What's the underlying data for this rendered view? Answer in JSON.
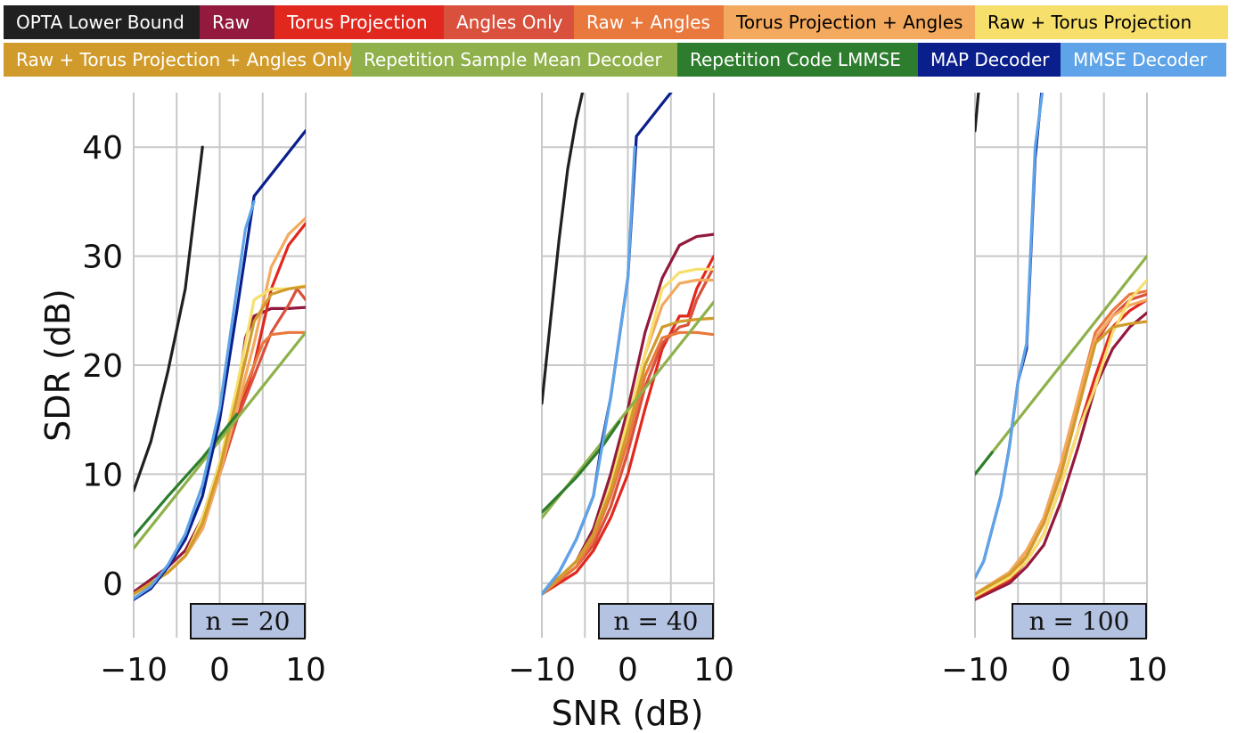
{
  "legend": [
    {
      "name": "OPTA Lower Bound",
      "color": "#202020",
      "text_color": "#ffffff",
      "width": 220
    },
    {
      "name": "Raw",
      "color": "#931a3c",
      "text_color": "#ffffff",
      "width": 84
    },
    {
      "name": "Torus Projection",
      "color": "#e0281e",
      "text_color": "#ffffff",
      "width": 190
    },
    {
      "name": "Angles Only",
      "color": "#d9503c",
      "text_color": "#ffffff",
      "width": 146
    },
    {
      "name": "Raw + Angles",
      "color": "#e8783c",
      "text_color": "#ffffff",
      "width": 168
    },
    {
      "name": "Torus Projection + Angles",
      "color": "#f3a95e",
      "text_color": "#000000",
      "width": 282
    },
    {
      "name": "Raw + Torus Projection",
      "color": "#f7df6c",
      "text_color": "#000000",
      "width": 284
    },
    {
      "name": "Raw + Torus Projection + Angles Only",
      "color": "#d19b2b",
      "text_color": "#ffffff",
      "width": 390
    },
    {
      "name": "Repetition Sample Mean Decoder",
      "color": "#8fb04a",
      "text_color": "#ffffff",
      "width": 366
    },
    {
      "name": "Repetition Code LMMSE",
      "color": "#2e7d2e",
      "text_color": "#ffffff",
      "width": 270
    },
    {
      "name": "MAP Decoder",
      "color": "#0a1f8c",
      "text_color": "#ffffff",
      "width": 160
    },
    {
      "name": "MMSE Decoder",
      "color": "#5fa4e8",
      "text_color": "#ffffff",
      "width": 186
    }
  ],
  "chart_data": [
    {
      "type": "line",
      "annotation": "n = 20",
      "xlabel": "",
      "ylabel": "SDR (dB)",
      "xlim": [
        -10,
        10
      ],
      "ylim": [
        -5,
        45
      ],
      "xticks": [
        -10,
        0,
        10
      ],
      "yticks": [
        0,
        10,
        20,
        30,
        40
      ],
      "grid": true,
      "series": [
        {
          "name": "OPTA Lower Bound",
          "x": [
            -10,
            -8,
            -6,
            -4,
            -2
          ],
          "y": [
            8.5,
            13,
            19.5,
            27,
            40
          ]
        },
        {
          "name": "Raw",
          "x": [
            -10,
            -6,
            -4,
            -2,
            0,
            2,
            3,
            4,
            6,
            8,
            10
          ],
          "y": [
            -0.8,
            1.5,
            3,
            6,
            11,
            17,
            22.5,
            24.5,
            25.2,
            25.2,
            25.3
          ]
        },
        {
          "name": "Torus Projection",
          "x": [
            -10,
            -6,
            -4,
            -2,
            0,
            2,
            4,
            6,
            8,
            10
          ],
          "y": [
            -1,
            1,
            2.5,
            5,
            10,
            15,
            20,
            27,
            31,
            33
          ]
        },
        {
          "name": "Angles Only",
          "x": [
            -10,
            -6,
            -4,
            -2,
            0,
            2,
            4,
            6,
            8,
            9,
            10
          ],
          "y": [
            -1,
            1,
            2.5,
            5,
            10,
            15,
            19,
            23,
            25.5,
            27,
            26
          ]
        },
        {
          "name": "Raw + Angles",
          "x": [
            -10,
            -6,
            -4,
            -2,
            0,
            2,
            4,
            5,
            6,
            8,
            10
          ],
          "y": [
            -1,
            1,
            2.5,
            5,
            10,
            16,
            20,
            22,
            22.8,
            23,
            23
          ]
        },
        {
          "name": "Torus Projection + Angles",
          "x": [
            -10,
            -6,
            -4,
            -2,
            0,
            2,
            4,
            6,
            8,
            10
          ],
          "y": [
            -1,
            1,
            2.5,
            5,
            10,
            16,
            22,
            29,
            32,
            33.5
          ]
        },
        {
          "name": "Raw + Torus Projection",
          "x": [
            -10,
            -6,
            -4,
            -2,
            0,
            2,
            4,
            6,
            8,
            10
          ],
          "y": [
            -1,
            1,
            2.5,
            6,
            11,
            18,
            26,
            27,
            27,
            27.3
          ]
        },
        {
          "name": "Raw + Torus Projection + Angles Only",
          "x": [
            -10,
            -6,
            -4,
            -2,
            0,
            2,
            4,
            6,
            8,
            10
          ],
          "y": [
            -1,
            1,
            2.5,
            5.5,
            10.5,
            17,
            24,
            26.5,
            27,
            27.2
          ]
        },
        {
          "name": "Repetition Sample Mean Decoder",
          "x": [
            -10,
            10
          ],
          "y": [
            3.2,
            23
          ]
        },
        {
          "name": "Repetition Code LMMSE",
          "x": [
            -10,
            -6,
            -2,
            0,
            2
          ],
          "y": [
            4.3,
            8,
            11.5,
            13.5,
            15.5
          ]
        },
        {
          "name": "MAP Decoder",
          "x": [
            -10,
            -8,
            -6,
            -4,
            -2,
            0,
            2,
            4,
            6,
            8,
            10
          ],
          "y": [
            -1.5,
            -0.5,
            1.5,
            4,
            8,
            15,
            25,
            35.5,
            37.5,
            39.5,
            41.5
          ]
        },
        {
          "name": "MMSE Decoder",
          "x": [
            -10,
            -8,
            -6,
            -4,
            -2,
            0,
            2,
            3,
            4
          ],
          "y": [
            -1.4,
            -0.3,
            1.7,
            4.5,
            9,
            16,
            27,
            32.5,
            35
          ]
        }
      ]
    },
    {
      "type": "line",
      "annotation": "n = 40",
      "xlabel": "SNR (dB)",
      "ylabel": "",
      "xlim": [
        -10,
        10
      ],
      "ylim": [
        -5,
        45
      ],
      "xticks": [
        -10,
        0,
        10
      ],
      "yticks": [
        0,
        10,
        20,
        30,
        40
      ],
      "grid": true,
      "series": [
        {
          "name": "OPTA Lower Bound",
          "x": [
            -10,
            -9,
            -8,
            -7,
            -6,
            -5
          ],
          "y": [
            16.5,
            24,
            31.5,
            38,
            42.5,
            46
          ]
        },
        {
          "name": "Raw",
          "x": [
            -10,
            -6,
            -4,
            -2,
            0,
            2,
            4,
            6,
            8,
            10
          ],
          "y": [
            -1,
            2,
            5,
            10,
            16,
            23,
            28,
            31,
            31.8,
            32
          ]
        },
        {
          "name": "Torus Projection",
          "x": [
            -10,
            -6,
            -4,
            -2,
            0,
            2,
            4,
            5,
            6,
            7,
            8,
            10
          ],
          "y": [
            -1,
            1,
            3,
            6,
            10,
            16,
            21.5,
            23,
            24.5,
            24.5,
            27,
            30
          ]
        },
        {
          "name": "Angles Only",
          "x": [
            -10,
            -6,
            -4,
            -2,
            0,
            2,
            4,
            6,
            7,
            8,
            10
          ],
          "y": [
            -1,
            1.5,
            3.5,
            7,
            12,
            18,
            22,
            23.5,
            23.7,
            26,
            29
          ]
        },
        {
          "name": "Raw + Angles",
          "x": [
            -10,
            -6,
            -4,
            -2,
            0,
            2,
            4,
            6,
            8,
            10
          ],
          "y": [
            -1,
            1.5,
            4,
            8,
            13,
            19,
            22.5,
            23,
            23,
            22.8
          ]
        },
        {
          "name": "Torus Projection + Angles",
          "x": [
            -10,
            -6,
            -4,
            -2,
            0,
            2,
            4,
            6,
            8,
            10
          ],
          "y": [
            -1,
            2,
            4.5,
            9,
            15,
            21,
            25.5,
            27.5,
            27.8,
            27.8
          ]
        },
        {
          "name": "Raw + Torus Projection",
          "x": [
            -10,
            -6,
            -4,
            -2,
            0,
            2,
            4,
            6,
            8,
            10
          ],
          "y": [
            -1,
            2,
            4.5,
            9,
            15,
            21,
            27,
            28.5,
            28.8,
            28.8
          ]
        },
        {
          "name": "Raw + Torus Projection + Angles Only",
          "x": [
            -10,
            -6,
            -4,
            -2,
            0,
            2,
            4,
            6,
            8,
            10
          ],
          "y": [
            -1,
            2,
            4.5,
            8.5,
            14,
            20,
            23.5,
            24,
            24.2,
            24.3
          ]
        },
        {
          "name": "Repetition Sample Mean Decoder",
          "x": [
            -10,
            10
          ],
          "y": [
            6,
            25.8
          ]
        },
        {
          "name": "Repetition Code LMMSE",
          "x": [
            -10,
            -6,
            -3,
            -1
          ],
          "y": [
            6.5,
            9.7,
            12.5,
            14.8
          ]
        },
        {
          "name": "MAP Decoder",
          "x": [
            -10,
            -8,
            -6,
            -5,
            -4,
            -3,
            -2,
            0,
            1,
            2,
            4,
            6
          ],
          "y": [
            -1,
            1,
            4,
            6,
            8,
            13,
            17,
            28,
            41,
            42,
            44,
            46
          ]
        },
        {
          "name": "MMSE Decoder",
          "x": [
            -10,
            -8,
            -6,
            -4,
            -3,
            -2,
            0,
            0.8
          ],
          "y": [
            -1,
            1,
            4,
            8,
            12.5,
            17,
            28,
            40
          ]
        }
      ]
    },
    {
      "type": "line",
      "annotation": "n = 100",
      "xlabel": "",
      "ylabel": "",
      "xlim": [
        -10,
        10
      ],
      "ylim": [
        -5,
        45
      ],
      "xticks": [
        -10,
        0,
        10
      ],
      "yticks": [
        0,
        10,
        20,
        30,
        40
      ],
      "grid": true,
      "series": [
        {
          "name": "OPTA Lower Bound",
          "x": [
            -10,
            -9.6,
            -9.3
          ],
          "y": [
            41.5,
            45,
            47
          ]
        },
        {
          "name": "Raw",
          "x": [
            -10,
            -6,
            -4,
            -2,
            0,
            2,
            4,
            6,
            8,
            10
          ],
          "y": [
            -1.5,
            0,
            1.5,
            3.5,
            7.5,
            12.5,
            18,
            21.5,
            23.5,
            24.8
          ]
        },
        {
          "name": "Torus Projection",
          "x": [
            -10,
            -6,
            -4,
            -2,
            0,
            2,
            4,
            6,
            8,
            10
          ],
          "y": [
            -1.3,
            0.3,
            2,
            4.5,
            9,
            14,
            19,
            23.5,
            25,
            26
          ]
        },
        {
          "name": "Angles Only",
          "x": [
            -10,
            -6,
            -4,
            -2,
            0,
            2,
            4,
            6,
            8,
            10
          ],
          "y": [
            -1.2,
            0.5,
            2.5,
            5.5,
            10,
            16,
            22,
            24.5,
            26,
            26.5
          ]
        },
        {
          "name": "Raw + Angles",
          "x": [
            -10,
            -6,
            -4,
            -2,
            0,
            2,
            4,
            6,
            8,
            10
          ],
          "y": [
            -1,
            1,
            3,
            6,
            11,
            17,
            23,
            25,
            26.5,
            26.8
          ]
        },
        {
          "name": "Torus Projection + Angles",
          "x": [
            -10,
            -6,
            -4,
            -2,
            0,
            2,
            4,
            6,
            8,
            10
          ],
          "y": [
            -1,
            1,
            3,
            6,
            11,
            17,
            22.5,
            24.5,
            25.5,
            26
          ]
        },
        {
          "name": "Raw + Torus Projection",
          "x": [
            -10,
            -6,
            -4,
            -2,
            0,
            2,
            4,
            6,
            8,
            10
          ],
          "y": [
            -1.2,
            0.5,
            2,
            4.5,
            9,
            14,
            18,
            23,
            26,
            27.8
          ]
        },
        {
          "name": "Raw + Torus Projection + Angles Only",
          "x": [
            -10,
            -6,
            -4,
            -2,
            0,
            2,
            4,
            6,
            8,
            10
          ],
          "y": [
            -1,
            0.8,
            2.5,
            5.5,
            10,
            16,
            22,
            23.5,
            23.8,
            24
          ]
        },
        {
          "name": "Repetition Sample Mean Decoder",
          "x": [
            -10,
            10
          ],
          "y": [
            10,
            30
          ]
        },
        {
          "name": "Repetition Code LMMSE",
          "x": [
            -10,
            -8
          ],
          "y": [
            10,
            12
          ]
        },
        {
          "name": "MAP Decoder",
          "x": [
            -10,
            -9,
            -8,
            -7,
            -6,
            -5,
            -4,
            -3,
            -2,
            -1,
            -0.6
          ],
          "y": [
            0.5,
            2,
            5,
            8,
            12.5,
            18.5,
            21.5,
            39,
            47,
            49,
            50
          ]
        },
        {
          "name": "MMSE Decoder",
          "x": [
            -10,
            -9,
            -8,
            -7,
            -6,
            -5,
            -4,
            -3,
            -2,
            -1
          ],
          "y": [
            0.5,
            2,
            5,
            8,
            12.5,
            18.5,
            22,
            40,
            46,
            49
          ]
        }
      ]
    }
  ]
}
